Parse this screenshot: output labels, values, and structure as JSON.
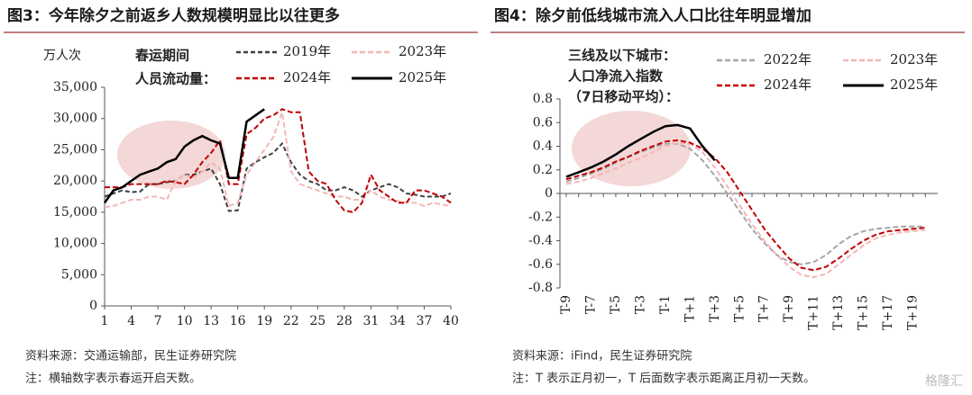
{
  "chart_data": [
    {
      "type": "line",
      "title": "图3：今年除夕之前返乡人数规模明显比以往更多",
      "ylabel": "万人次",
      "legend_title": [
        "春运期间",
        "人员流动量："
      ],
      "legend": "top",
      "x": [
        1,
        2,
        3,
        4,
        5,
        6,
        7,
        8,
        9,
        10,
        11,
        12,
        13,
        14,
        15,
        16,
        17,
        18,
        19,
        20,
        21,
        22,
        23,
        24,
        25,
        26,
        27,
        28,
        29,
        30,
        31,
        32,
        33,
        34,
        35,
        36,
        37,
        38,
        39,
        40
      ],
      "xlim": [
        1,
        40
      ],
      "xticks": [
        1,
        4,
        7,
        10,
        13,
        16,
        19,
        22,
        25,
        28,
        31,
        34,
        37,
        40
      ],
      "ylim": [
        0,
        35000
      ],
      "yticks": [
        0,
        {
          "value": 5000,
          "label": "5,000"
        },
        {
          "value": 10000,
          "label": "10,000"
        },
        {
          "value": 15000,
          "label": "15,000"
        },
        {
          "value": 20000,
          "label": "20,000"
        },
        {
          "value": 25000,
          "label": "25,000"
        },
        {
          "value": 30000,
          "label": "30,000"
        },
        {
          "value": 35000,
          "label": "35,000"
        }
      ],
      "series": [
        {
          "name": "2019年",
          "color": "#404040",
          "dash": "5,3",
          "values": [
            17500,
            18000,
            18500,
            18200,
            18300,
            19500,
            19500,
            19800,
            20000,
            21000,
            21000,
            21500,
            22000,
            19500,
            15200,
            15300,
            22000,
            23000,
            23800,
            24500,
            26000,
            23000,
            21000,
            20000,
            19500,
            18500,
            18500,
            19000,
            18500,
            17500,
            18500,
            19000,
            19500,
            19000,
            18000,
            17800,
            17500,
            17500,
            17500,
            18000
          ]
        },
        {
          "name": "2023年",
          "color": "#f4b6b6",
          "dash": "6,3",
          "values": [
            15800,
            16000,
            16500,
            17000,
            17000,
            17500,
            17500,
            17000,
            20000,
            21000,
            20500,
            21500,
            23000,
            22000,
            16000,
            16500,
            21000,
            23000,
            25000,
            27000,
            31000,
            21500,
            19500,
            19000,
            18500,
            18000,
            17500,
            17500,
            17000,
            17000,
            18500,
            17500,
            17000,
            16800,
            16500,
            16500,
            16000,
            16500,
            16200,
            16000
          ]
        },
        {
          "name": "2024年",
          "color": "#c00000",
          "dash": "6,3",
          "values": [
            19000,
            19000,
            19000,
            19500,
            19500,
            19500,
            19500,
            20000,
            19800,
            19500,
            21000,
            23000,
            24500,
            26500,
            19500,
            19500,
            27500,
            28500,
            30000,
            30500,
            31500,
            31000,
            31000,
            21500,
            20000,
            19500,
            17000,
            15300,
            15000,
            16500,
            21000,
            18500,
            17500,
            16500,
            16500,
            18500,
            18500,
            18000,
            17500,
            16500
          ]
        },
        {
          "name": "2025年",
          "color": "#000000",
          "dash": "",
          "values": [
            16500,
            18500,
            19000,
            20000,
            21000,
            21500,
            22000,
            23000,
            23500,
            25500,
            26500,
            27200,
            26500,
            26000,
            20500,
            20500,
            29500,
            30500,
            31500,
            null,
            null,
            null,
            null,
            null,
            null,
            null,
            null,
            null,
            null,
            null,
            null,
            null,
            null,
            null,
            null,
            null,
            null,
            null,
            null,
            null
          ]
        }
      ],
      "source": "资料来源：交通运输部，民生证券研究院",
      "note": "注：横轴数字表示春运开启天数。"
    },
    {
      "type": "line",
      "title": "图4：除夕前低线城市流入人口比往年明显增加",
      "legend_title": [
        "三线及以下城市：",
        "人口净流入指数",
        "（7日移动平均）："
      ],
      "legend": "top",
      "categories": [
        "T-9",
        null,
        "T-7",
        null,
        "T-5",
        null,
        "T-3",
        null,
        "T-1",
        null,
        "T+1",
        null,
        "T+3",
        null,
        "T+5",
        null,
        "T+7",
        null,
        "T+9",
        null,
        "T+11",
        null,
        "T+13",
        null,
        "T+15",
        null,
        "T+17",
        null,
        "T+19",
        null
      ],
      "ylim": [
        -0.8,
        0.8
      ],
      "yticks": [
        -0.8,
        -0.6,
        -0.4,
        -0.2,
        0,
        0.2,
        0.4,
        0.6,
        0.8
      ],
      "series": [
        {
          "name": "2022年",
          "color": "#a6a6a6",
          "dash": "6,3",
          "values": [
            0.1,
            0.13,
            0.17,
            0.21,
            0.26,
            0.31,
            0.35,
            0.39,
            0.42,
            0.42,
            0.38,
            0.28,
            0.15,
            0.0,
            -0.15,
            -0.3,
            -0.42,
            -0.52,
            -0.58,
            -0.6,
            -0.58,
            -0.52,
            -0.43,
            -0.36,
            -0.32,
            -0.3,
            -0.29,
            -0.28,
            -0.28,
            -0.28
          ]
        },
        {
          "name": "2023年",
          "color": "#f4b6b6",
          "dash": "6,3",
          "values": [
            0.08,
            0.1,
            0.13,
            0.17,
            0.21,
            0.26,
            0.3,
            0.35,
            0.4,
            0.43,
            0.42,
            0.35,
            0.22,
            0.06,
            -0.1,
            -0.26,
            -0.4,
            -0.52,
            -0.62,
            -0.69,
            -0.71,
            -0.68,
            -0.6,
            -0.52,
            -0.44,
            -0.38,
            -0.35,
            -0.33,
            -0.32,
            -0.31
          ]
        },
        {
          "name": "2024年",
          "color": "#c00000",
          "dash": "6,3",
          "values": [
            0.12,
            0.15,
            0.18,
            0.22,
            0.27,
            0.31,
            0.36,
            0.4,
            0.44,
            0.45,
            0.43,
            0.38,
            0.3,
            0.18,
            0.02,
            -0.14,
            -0.3,
            -0.43,
            -0.55,
            -0.63,
            -0.65,
            -0.62,
            -0.55,
            -0.47,
            -0.4,
            -0.35,
            -0.32,
            -0.31,
            -0.3,
            -0.29
          ]
        },
        {
          "name": "2025年",
          "color": "#000000",
          "dash": "",
          "values": [
            0.14,
            0.18,
            0.22,
            0.27,
            0.33,
            0.4,
            0.46,
            0.52,
            0.57,
            0.58,
            0.55,
            0.4,
            0.28,
            null,
            null,
            null,
            null,
            null,
            null,
            null,
            null,
            null,
            null,
            null,
            null,
            null,
            null,
            null,
            null,
            null
          ]
        }
      ],
      "source": "资料来源：iFind，民生证券研究院",
      "note": "注：T 表示正月初一，T 后面数字表示距离正月初一天数。"
    }
  ],
  "watermark": "格隆汇"
}
